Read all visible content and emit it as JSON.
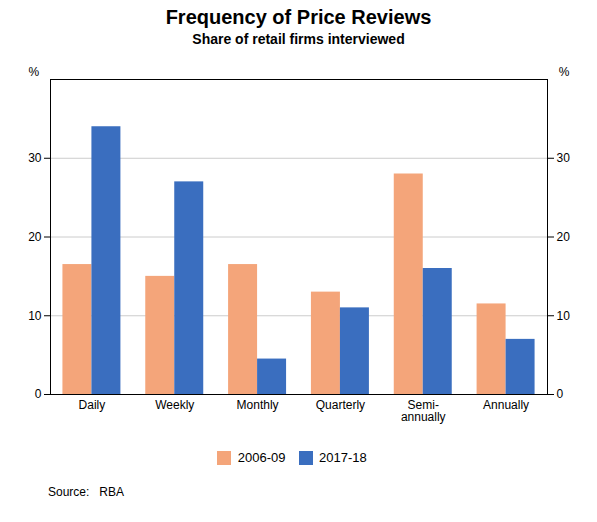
{
  "chart_data": {
    "type": "bar",
    "title": "Frequency of Price Reviews",
    "subtitle": "Share of retail firms interviewed",
    "source": "Source:   RBA",
    "ylabel": "%",
    "categories": [
      "Daily",
      "Weekly",
      "Monthly",
      "Quarterly",
      "Semi-\nannually",
      "Annually"
    ],
    "series": [
      {
        "name": "2006-09",
        "color": "#F4A57A",
        "values": [
          16.5,
          15.0,
          16.5,
          13.0,
          28.0,
          11.5
        ]
      },
      {
        "name": "2017-18",
        "color": "#3A6EBF",
        "values": [
          34.0,
          27.0,
          4.5,
          11.0,
          16.0,
          7.0
        ]
      }
    ],
    "ylim": [
      0,
      40
    ],
    "yticks": [
      0,
      10,
      20,
      30
    ],
    "grid": true,
    "legend": "bottom"
  }
}
